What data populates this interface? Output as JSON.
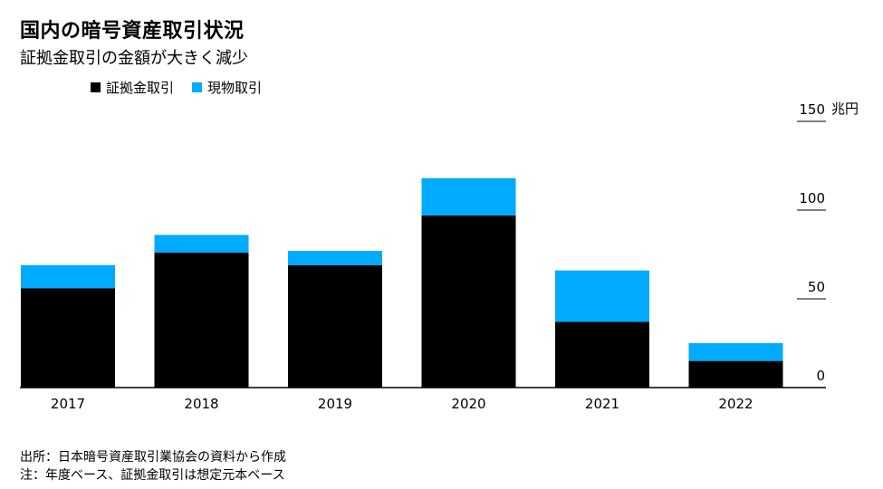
{
  "title": "国内の暗号資産取引状況",
  "subtitle": "証拠金取引の金額が大きく減少",
  "unit": "兆円",
  "footnotes": [
    "出所：日本暗号資産取引業協会の資料から作成",
    "注：年度ベース、証拠金取引は想定元本ベース"
  ],
  "colors": {
    "margin": "#000000",
    "spot": "#00AAFF"
  },
  "chart_data": {
    "type": "bar",
    "stacked": true,
    "categories": [
      "2017",
      "2018",
      "2019",
      "2020",
      "2021",
      "2022"
    ],
    "series": [
      {
        "name": "証拠金取引",
        "values": [
          56,
          76,
          69,
          97,
          37,
          15
        ]
      },
      {
        "name": "現物取引",
        "values": [
          13,
          10,
          8,
          21,
          29,
          10
        ]
      }
    ],
    "ylim": [
      0,
      150
    ],
    "yticks": [
      "150",
      "100",
      "50",
      "0"
    ],
    "ytick_values": [
      150,
      100,
      50,
      0
    ],
    "legend": "top-left",
    "grid": false
  }
}
